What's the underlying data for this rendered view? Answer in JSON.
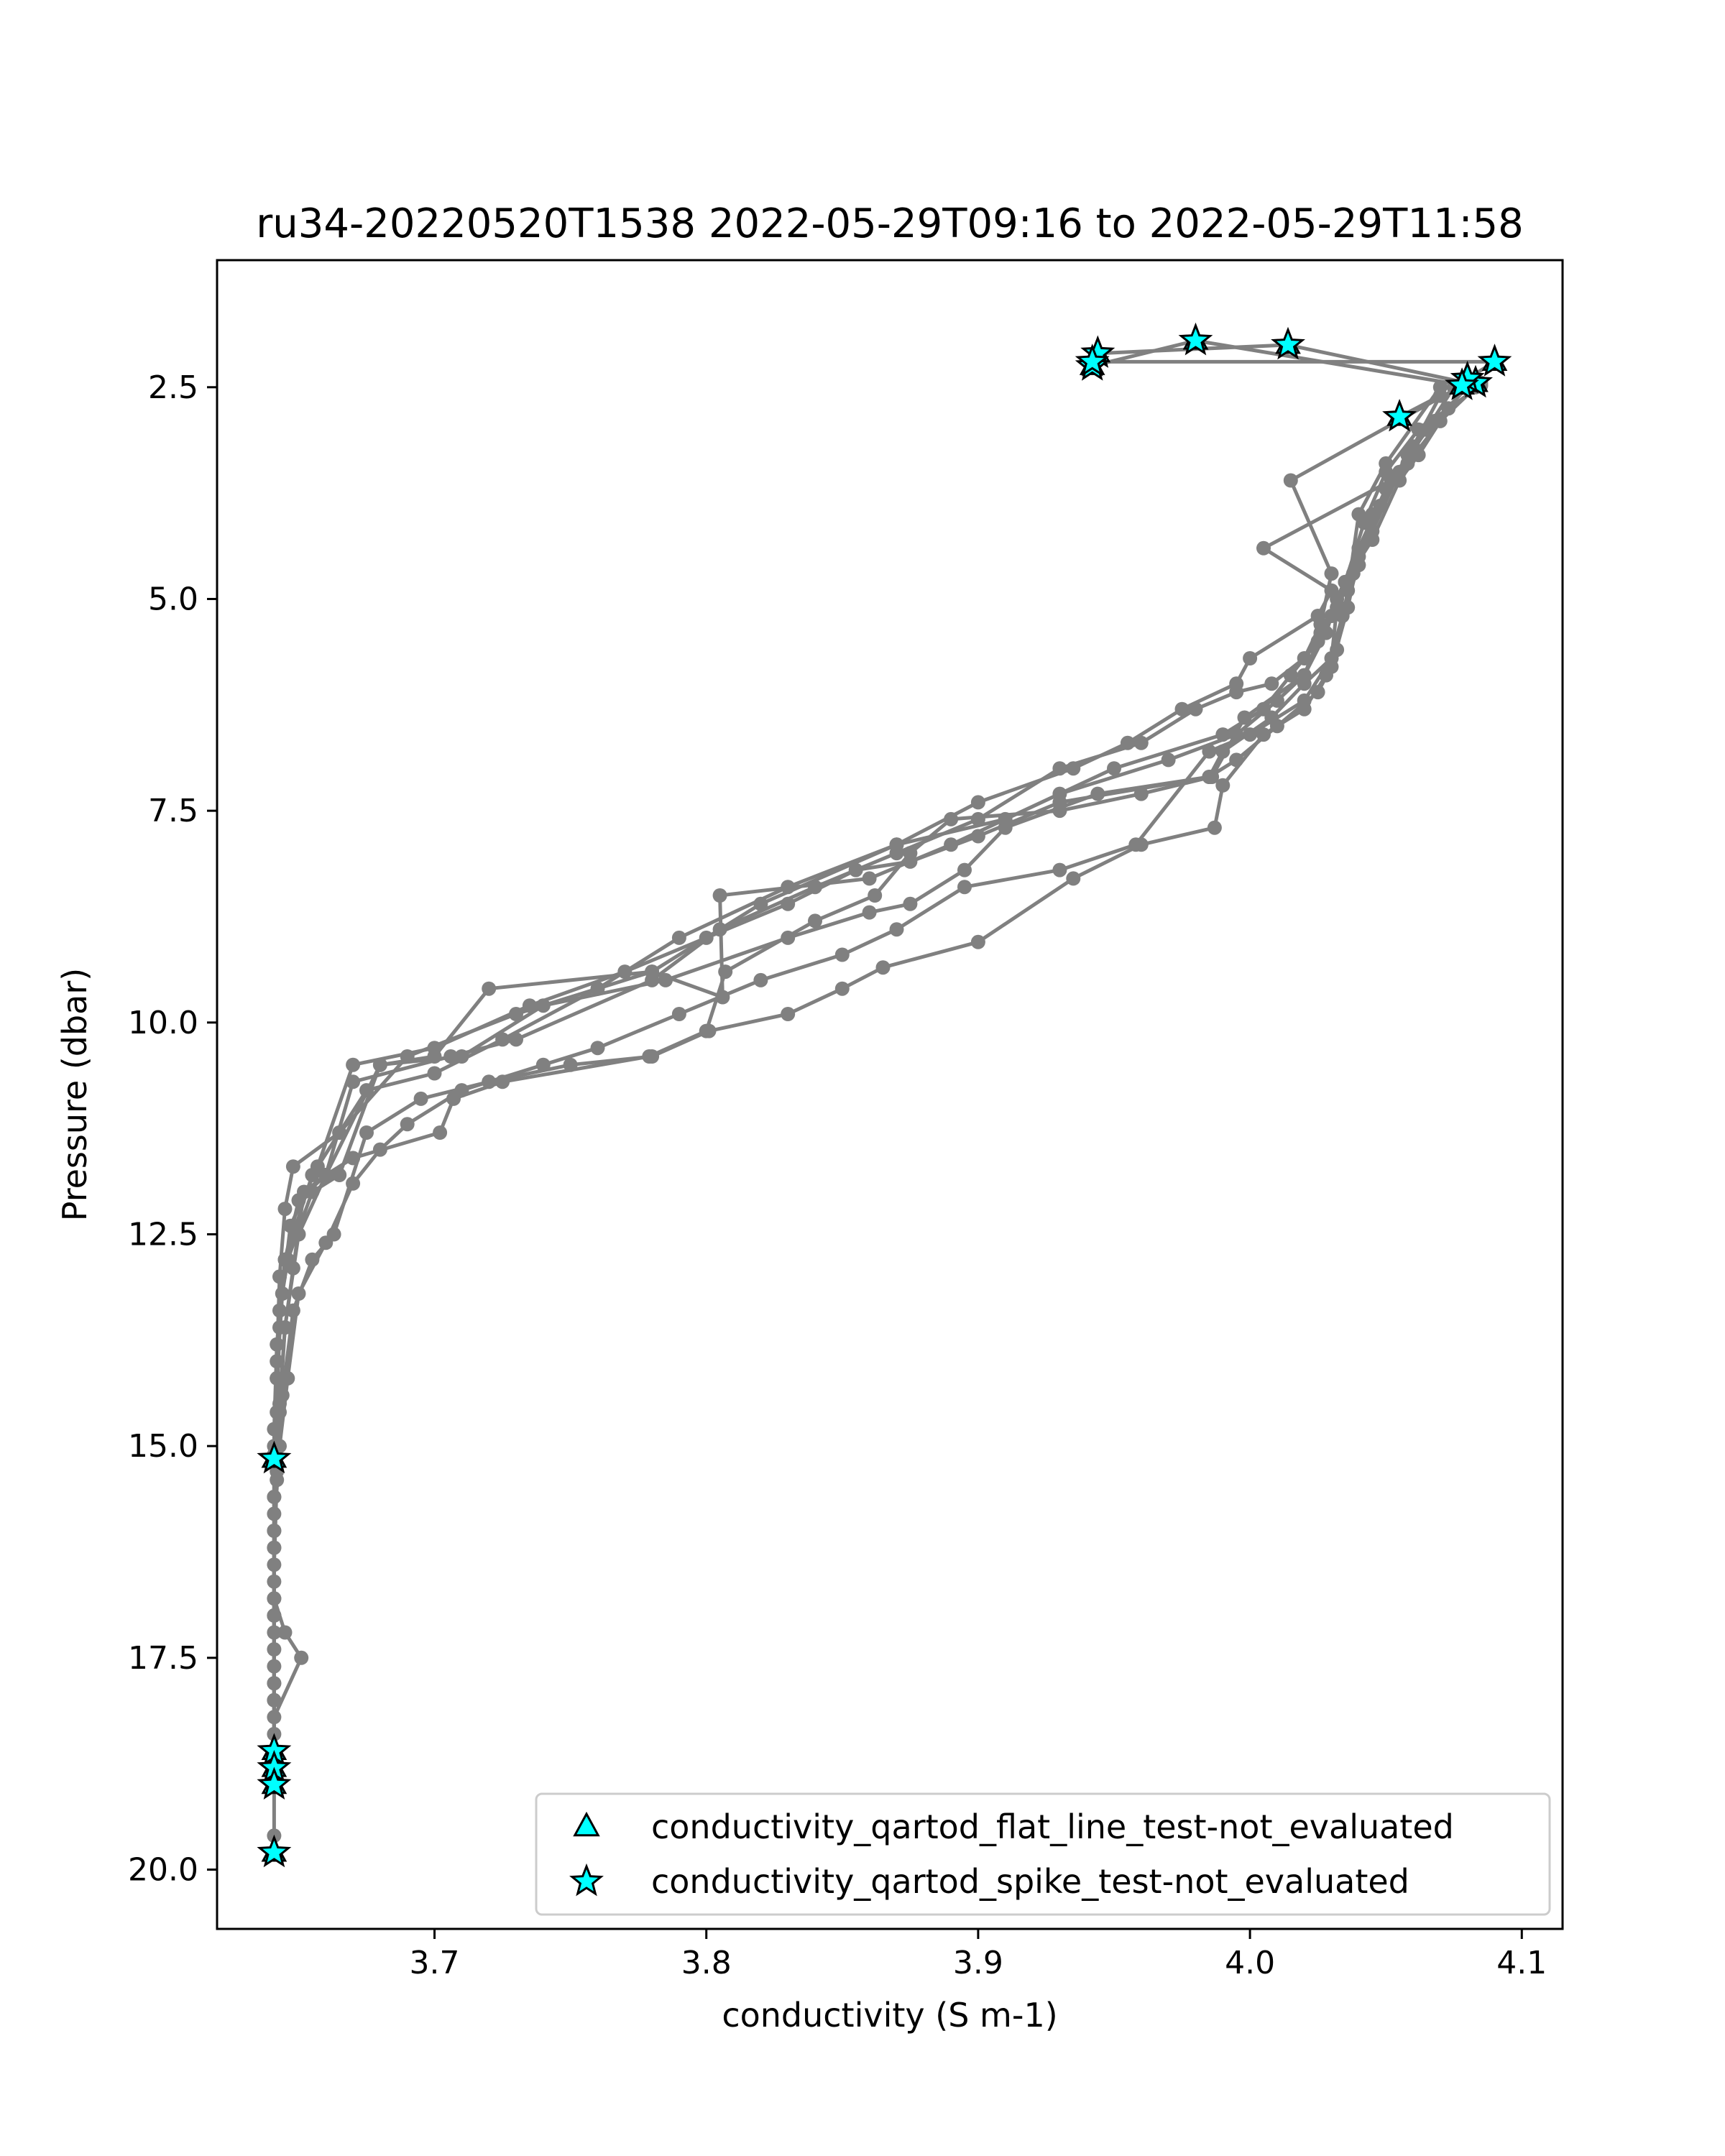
{
  "chart_data": {
    "type": "line",
    "title": "ru34-20220520T1538 2022-05-29T09:16 to 2022-05-29T11:58",
    "xlabel": "conductivity (S m-1)",
    "ylabel": "Pressure (dbar)",
    "xlim": [
      3.62,
      4.115
    ],
    "ylim": [
      20.7,
      1.0
    ],
    "y_inverted": true,
    "grid": false,
    "x_ticks": [
      3.7,
      3.8,
      3.9,
      4.0,
      4.1
    ],
    "x_tick_labels": [
      "3.7",
      "3.8",
      "3.9",
      "4.0",
      "4.1"
    ],
    "y_ticks": [
      2.5,
      5.0,
      7.5,
      10.0,
      12.5,
      15.0,
      17.5,
      20.0
    ],
    "y_tick_labels": [
      "2.5",
      "5.0",
      "7.5",
      "10.0",
      "12.5",
      "15.0",
      "17.5",
      "20.0"
    ],
    "line_color": "#808080",
    "marker_fill": "#00ffff",
    "marker_edge": "#000000",
    "legend_position": "lower-right",
    "legend": [
      {
        "label": "conductivity_qartod_flat_line_test-not_evaluated",
        "marker": "triangle"
      },
      {
        "label": "conductivity_qartod_spike_test-not_evaluated",
        "marker": "star"
      }
    ],
    "profiles": [
      [
        [
          3.944,
          2.1
        ],
        [
          4.014,
          2.0
        ],
        [
          4.08,
          2.45
        ],
        [
          4.073,
          2.75
        ],
        [
          4.062,
          3.3
        ],
        [
          4.055,
          3.6
        ],
        [
          4.045,
          4.3
        ],
        [
          4.035,
          4.8
        ],
        [
          4.03,
          5.2
        ],
        [
          4.025,
          5.5
        ],
        [
          4.015,
          5.9
        ],
        [
          4.005,
          6.3
        ],
        [
          3.99,
          6.6
        ],
        [
          3.95,
          7.0
        ],
        [
          3.91,
          7.6
        ],
        [
          3.87,
          7.9
        ],
        [
          3.82,
          8.6
        ],
        [
          3.78,
          9.4
        ],
        [
          3.73,
          9.9
        ],
        [
          3.69,
          10.4
        ],
        [
          3.665,
          11.3
        ],
        [
          3.648,
          11.7
        ],
        [
          3.645,
          12.2
        ],
        [
          3.643,
          13.0
        ],
        [
          3.642,
          14.0
        ],
        [
          3.641,
          15.0
        ],
        [
          3.641,
          16.0
        ],
        [
          3.641,
          17.0
        ],
        [
          3.641,
          18.0
        ],
        [
          3.641,
          18.6
        ]
      ],
      [
        [
          3.942,
          2.25
        ],
        [
          3.98,
          1.95
        ],
        [
          4.083,
          2.5
        ],
        [
          4.07,
          2.9
        ],
        [
          4.058,
          3.4
        ],
        [
          4.05,
          3.7
        ],
        [
          4.04,
          4.4
        ],
        [
          4.032,
          5.0
        ],
        [
          4.028,
          5.4
        ],
        [
          4.02,
          5.9
        ],
        [
          4.01,
          6.2
        ],
        [
          3.995,
          6.6
        ],
        [
          3.97,
          6.9
        ],
        [
          3.93,
          7.3
        ],
        [
          3.89,
          7.9
        ],
        [
          3.86,
          8.3
        ],
        [
          3.805,
          8.5
        ],
        [
          3.806,
          9.7
        ],
        [
          3.78,
          9.4
        ],
        [
          3.72,
          9.6
        ],
        [
          3.7,
          10.4
        ],
        [
          3.68,
          10.5
        ],
        [
          3.66,
          11.8
        ],
        [
          3.65,
          12.1
        ],
        [
          3.645,
          12.8
        ],
        [
          3.643,
          13.6
        ],
        [
          3.642,
          14.6
        ],
        [
          3.641,
          15.6
        ],
        [
          3.641,
          16.6
        ],
        [
          3.641,
          17.6
        ],
        [
          3.641,
          18.8
        ]
      ],
      [
        [
          3.942,
          2.2
        ],
        [
          4.09,
          2.2
        ],
        [
          4.075,
          2.5
        ],
        [
          4.065,
          3.0
        ],
        [
          4.055,
          3.5
        ],
        [
          4.045,
          4.2
        ],
        [
          4.038,
          4.7
        ],
        [
          4.032,
          5.1
        ],
        [
          4.03,
          5.7
        ],
        [
          4.02,
          6.0
        ],
        [
          4.008,
          6.4
        ],
        [
          3.99,
          6.8
        ],
        [
          3.985,
          7.1
        ],
        [
          3.944,
          7.3
        ],
        [
          3.91,
          7.7
        ],
        [
          3.895,
          8.2
        ],
        [
          3.875,
          8.6
        ],
        [
          3.86,
          8.7
        ],
        [
          3.83,
          9.0
        ],
        [
          3.785,
          9.5
        ],
        [
          3.74,
          9.8
        ],
        [
          3.71,
          10.4
        ],
        [
          3.68,
          10.5
        ],
        [
          3.665,
          11.8
        ],
        [
          3.655,
          12.0
        ],
        [
          3.646,
          12.8
        ],
        [
          3.643,
          13.4
        ],
        [
          3.642,
          14.2
        ],
        [
          3.641,
          15.2
        ],
        [
          3.641,
          16.2
        ],
        [
          3.641,
          17.2
        ],
        [
          3.641,
          18.4
        ],
        [
          3.641,
          19.0
        ]
      ],
      [
        [
          4.055,
          2.85
        ],
        [
          4.07,
          2.6
        ],
        [
          4.06,
          3.2
        ],
        [
          4.048,
          3.9
        ],
        [
          4.04,
          4.5
        ],
        [
          4.036,
          5.1
        ],
        [
          4.03,
          5.8
        ],
        [
          4.025,
          6.1
        ],
        [
          4.01,
          6.5
        ],
        [
          3.995,
          6.9
        ],
        [
          3.985,
          7.1
        ],
        [
          3.93,
          7.4
        ],
        [
          3.9,
          7.8
        ],
        [
          3.875,
          8.1
        ],
        [
          3.855,
          8.2
        ],
        [
          3.83,
          8.6
        ],
        [
          3.8,
          9.0
        ],
        [
          3.77,
          9.4
        ],
        [
          3.735,
          9.8
        ],
        [
          3.7,
          10.3
        ],
        [
          3.67,
          10.5
        ],
        [
          3.657,
          11.7
        ],
        [
          3.647,
          12.4
        ],
        [
          3.644,
          13.2
        ],
        [
          3.642,
          14.2
        ],
        [
          3.641,
          15.1
        ]
      ],
      [
        [
          4.078,
          2.48
        ],
        [
          4.015,
          3.6
        ],
        [
          4.03,
          4.7
        ],
        [
          4.026,
          5.3
        ],
        [
          4.02,
          5.7
        ],
        [
          4.008,
          6.0
        ],
        [
          3.995,
          6.1
        ],
        [
          3.98,
          6.3
        ],
        [
          3.96,
          6.7
        ],
        [
          3.93,
          7.0
        ],
        [
          3.9,
          7.6
        ],
        [
          3.87,
          8.0
        ],
        [
          3.84,
          8.4
        ],
        [
          3.805,
          8.9
        ],
        [
          3.78,
          9.5
        ],
        [
          3.73,
          10.2
        ],
        [
          3.706,
          10.4
        ],
        [
          3.67,
          10.7
        ],
        [
          3.66,
          11.8
        ],
        [
          3.652,
          12.0
        ],
        [
          3.648,
          12.9
        ],
        [
          3.645,
          13.6
        ],
        [
          3.643,
          14.6
        ],
        [
          3.641,
          15.6
        ],
        [
          3.641,
          16.8
        ],
        [
          3.645,
          17.2
        ],
        [
          3.651,
          17.5
        ],
        [
          3.641,
          18.2
        ],
        [
          3.641,
          19.0
        ]
      ],
      [
        [
          4.085,
          2.45
        ],
        [
          4.065,
          3.0
        ],
        [
          4.052,
          3.6
        ],
        [
          4.005,
          4.4
        ],
        [
          4.03,
          4.9
        ],
        [
          4.025,
          5.2
        ],
        [
          4.0,
          5.7
        ],
        [
          3.995,
          6.0
        ],
        [
          3.975,
          6.3
        ],
        [
          3.955,
          6.7
        ],
        [
          3.935,
          7.0
        ],
        [
          3.9,
          7.4
        ],
        [
          3.87,
          7.9
        ],
        [
          3.83,
          8.4
        ],
        [
          3.79,
          9.0
        ],
        [
          3.76,
          9.6
        ],
        [
          3.725,
          10.2
        ],
        [
          3.7,
          10.6
        ],
        [
          3.675,
          10.8
        ],
        [
          3.665,
          11.3
        ],
        [
          3.655,
          11.8
        ],
        [
          3.645,
          12.8
        ],
        [
          3.642,
          13.8
        ],
        [
          3.641,
          14.8
        ],
        [
          3.641,
          15.8
        ],
        [
          3.641,
          16.8
        ],
        [
          3.641,
          17.8
        ],
        [
          3.641,
          19.6
        ],
        [
          3.641,
          19.8
        ]
      ],
      [
        [
          4.07,
          2.5
        ],
        [
          4.05,
          3.4
        ],
        [
          4.04,
          4.0
        ],
        [
          4.036,
          4.9
        ],
        [
          4.032,
          5.6
        ],
        [
          4.02,
          6.2
        ],
        [
          4.0,
          6.6
        ],
        [
          3.985,
          6.8
        ],
        [
          3.958,
          7.9
        ],
        [
          3.93,
          8.2
        ],
        [
          3.895,
          8.4
        ],
        [
          3.87,
          8.9
        ],
        [
          3.85,
          9.2
        ],
        [
          3.82,
          9.5
        ],
        [
          3.79,
          9.9
        ],
        [
          3.76,
          10.3
        ],
        [
          3.74,
          10.5
        ],
        [
          3.71,
          10.8
        ],
        [
          3.69,
          11.2
        ],
        [
          3.68,
          11.5
        ],
        [
          3.67,
          11.9
        ],
        [
          3.66,
          12.6
        ],
        [
          3.65,
          13.2
        ],
        [
          3.646,
          14.2
        ],
        [
          3.643,
          15.0
        ],
        [
          3.641,
          16.0
        ],
        [
          3.641,
          17.0
        ],
        [
          3.641,
          18.0
        ]
      ],
      [
        [
          4.085,
          2.48
        ],
        [
          4.062,
          3.0
        ],
        [
          4.05,
          3.5
        ],
        [
          4.042,
          4.1
        ],
        [
          4.035,
          4.8
        ],
        [
          4.026,
          5.4
        ],
        [
          4.02,
          5.9
        ],
        [
          3.998,
          6.4
        ],
        [
          3.986,
          7.1
        ],
        [
          3.96,
          7.3
        ],
        [
          3.93,
          7.5
        ],
        [
          3.89,
          7.6
        ],
        [
          3.875,
          8.0
        ],
        [
          3.862,
          8.5
        ],
        [
          3.84,
          8.8
        ],
        [
          3.807,
          9.4
        ],
        [
          3.8,
          10.1
        ],
        [
          3.779,
          10.4
        ],
        [
          3.725,
          10.7
        ],
        [
          3.707,
          10.9
        ],
        [
          3.702,
          11.3
        ],
        [
          3.67,
          11.6
        ],
        [
          3.66,
          11.8
        ],
        [
          3.65,
          12.5
        ],
        [
          3.645,
          13.6
        ],
        [
          3.643,
          14.5
        ],
        [
          3.642,
          15.4
        ],
        [
          3.641,
          16.4
        ],
        [
          3.641,
          17.4
        ],
        [
          3.641,
          18.6
        ]
      ],
      [
        [
          4.08,
          2.5
        ],
        [
          4.068,
          2.9
        ],
        [
          4.058,
          3.3
        ],
        [
          4.045,
          4.0
        ],
        [
          4.04,
          4.6
        ],
        [
          4.034,
          5.2
        ],
        [
          4.028,
          5.9
        ],
        [
          4.02,
          6.3
        ],
        [
          4.005,
          6.6
        ],
        [
          3.99,
          7.2
        ],
        [
          3.987,
          7.7
        ],
        [
          3.96,
          7.9
        ],
        [
          3.935,
          8.3
        ],
        [
          3.9,
          9.05
        ],
        [
          3.865,
          9.35
        ],
        [
          3.85,
          9.6
        ],
        [
          3.83,
          9.9
        ],
        [
          3.801,
          10.1
        ],
        [
          3.78,
          10.4
        ],
        [
          3.75,
          10.5
        ],
        [
          3.72,
          10.7
        ],
        [
          3.695,
          10.9
        ],
        [
          3.675,
          11.3
        ],
        [
          3.663,
          12.5
        ],
        [
          3.655,
          12.8
        ],
        [
          3.648,
          13.4
        ],
        [
          3.644,
          14.4
        ],
        [
          3.642,
          15.3
        ],
        [
          3.641,
          16.2
        ],
        [
          3.641,
          17.0
        ],
        [
          3.641,
          17.8
        ],
        [
          3.641,
          18.8
        ]
      ]
    ],
    "spike_stars": [
      [
        3.944,
        2.1
      ],
      [
        3.942,
        2.25
      ],
      [
        3.942,
        2.2
      ],
      [
        3.98,
        1.95
      ],
      [
        4.014,
        2.0
      ],
      [
        4.09,
        2.2
      ],
      [
        4.083,
        2.45
      ],
      [
        4.08,
        2.4
      ],
      [
        4.078,
        2.48
      ],
      [
        4.055,
        2.85
      ],
      [
        3.641,
        15.15
      ],
      [
        3.641,
        18.6
      ],
      [
        3.641,
        18.8
      ],
      [
        3.641,
        19.0
      ],
      [
        3.641,
        19.8
      ]
    ],
    "flat_line_triangles": [
      [
        3.944,
        2.1
      ],
      [
        3.942,
        2.25
      ],
      [
        3.98,
        1.95
      ],
      [
        4.014,
        2.0
      ],
      [
        4.09,
        2.2
      ],
      [
        4.083,
        2.45
      ],
      [
        4.078,
        2.48
      ],
      [
        4.055,
        2.85
      ],
      [
        3.641,
        15.15
      ],
      [
        3.641,
        18.6
      ],
      [
        3.641,
        18.8
      ],
      [
        3.641,
        19.0
      ],
      [
        3.641,
        19.8
      ]
    ]
  }
}
